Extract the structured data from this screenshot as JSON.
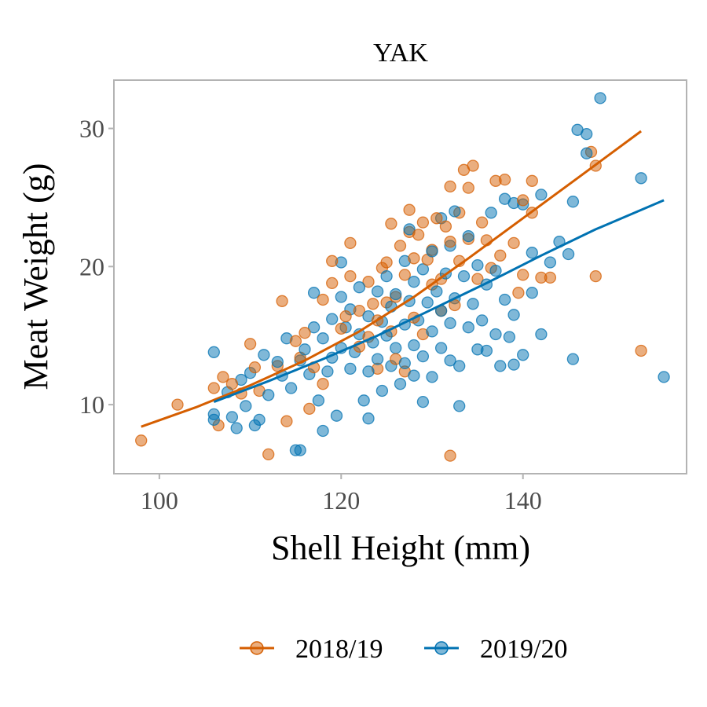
{
  "chart_data": {
    "type": "scatter",
    "title": "YAK",
    "xlabel": "Shell Height (mm)",
    "ylabel": "Meat Weight (g)",
    "xlim": [
      95,
      158
    ],
    "ylim": [
      5,
      33.5
    ],
    "xticks": [
      100,
      120,
      140
    ],
    "yticks": [
      10,
      20,
      30
    ],
    "xtick_labels": [
      "100",
      "120",
      "140"
    ],
    "ytick_labels": [
      "10",
      "20",
      "30"
    ],
    "legend_position": "bottom",
    "series": [
      {
        "name": "2018/19",
        "color": "#D55E00",
        "points": [
          [
            98,
            7.4
          ],
          [
            102,
            10.0
          ],
          [
            106,
            11.2
          ],
          [
            106.5,
            8.5
          ],
          [
            107,
            12.0
          ],
          [
            108,
            11.5
          ],
          [
            109,
            10.8
          ],
          [
            110,
            14.4
          ],
          [
            110.5,
            12.7
          ],
          [
            111,
            11.0
          ],
          [
            112,
            6.4
          ],
          [
            113,
            12.8
          ],
          [
            113.5,
            17.5
          ],
          [
            114,
            8.8
          ],
          [
            115,
            14.6
          ],
          [
            115.5,
            13.4
          ],
          [
            116,
            15.2
          ],
          [
            116.5,
            9.7
          ],
          [
            117,
            12.7
          ],
          [
            118,
            11.5
          ],
          [
            118,
            17.6
          ],
          [
            119,
            18.8
          ],
          [
            119,
            20.4
          ],
          [
            120,
            15.5
          ],
          [
            120.5,
            16.4
          ],
          [
            121,
            19.3
          ],
          [
            121,
            21.7
          ],
          [
            122,
            14.2
          ],
          [
            122,
            16.8
          ],
          [
            123,
            18.9
          ],
          [
            123,
            14.9
          ],
          [
            123.5,
            17.3
          ],
          [
            124,
            12.6
          ],
          [
            124,
            16.1
          ],
          [
            124.5,
            19.9
          ],
          [
            125,
            17.4
          ],
          [
            125,
            20.3
          ],
          [
            125.5,
            15.3
          ],
          [
            125.5,
            23.1
          ],
          [
            126,
            13.3
          ],
          [
            126,
            17.8
          ],
          [
            126.5,
            21.5
          ],
          [
            127,
            12.4
          ],
          [
            127,
            19.4
          ],
          [
            127.5,
            22.5
          ],
          [
            127.5,
            24.1
          ],
          [
            128,
            16.3
          ],
          [
            128,
            20.6
          ],
          [
            128.5,
            22.3
          ],
          [
            129,
            15.1
          ],
          [
            129,
            23.2
          ],
          [
            129.5,
            20.5
          ],
          [
            130,
            18.7
          ],
          [
            130,
            21.2
          ],
          [
            130.5,
            23.5
          ],
          [
            131,
            16.8
          ],
          [
            131,
            19.1
          ],
          [
            131.5,
            22.9
          ],
          [
            132,
            21.8
          ],
          [
            132,
            25.8
          ],
          [
            132,
            6.3
          ],
          [
            132.5,
            17.2
          ],
          [
            133,
            20.4
          ],
          [
            133,
            23.9
          ],
          [
            133.5,
            27.0
          ],
          [
            134,
            22.0
          ],
          [
            134,
            25.7
          ],
          [
            134.5,
            27.3
          ],
          [
            135,
            19.1
          ],
          [
            135.5,
            23.2
          ],
          [
            136,
            21.9
          ],
          [
            136.5,
            19.9
          ],
          [
            137,
            26.2
          ],
          [
            137.5,
            20.8
          ],
          [
            138,
            26.3
          ],
          [
            139,
            21.7
          ],
          [
            139.5,
            18.1
          ],
          [
            140,
            19.4
          ],
          [
            140,
            24.8
          ],
          [
            141,
            23.9
          ],
          [
            141,
            26.2
          ],
          [
            142,
            19.2
          ],
          [
            143,
            19.2
          ],
          [
            147.5,
            28.3
          ],
          [
            148,
            27.3
          ],
          [
            148,
            19.3
          ],
          [
            153,
            13.9
          ]
        ],
        "fit": [
          [
            98,
            8.4
          ],
          [
            104,
            9.8
          ],
          [
            110,
            11.4
          ],
          [
            116,
            13.2
          ],
          [
            122,
            15.3
          ],
          [
            128,
            17.8
          ],
          [
            134,
            20.6
          ],
          [
            140,
            23.5
          ],
          [
            146,
            26.4
          ],
          [
            153,
            29.8
          ]
        ]
      },
      {
        "name": "2019/20",
        "color": "#0072B2",
        "points": [
          [
            106,
            13.8
          ],
          [
            106,
            9.3
          ],
          [
            106,
            8.9
          ],
          [
            107.5,
            10.9
          ],
          [
            108,
            9.1
          ],
          [
            108.5,
            8.3
          ],
          [
            109,
            11.8
          ],
          [
            109.5,
            9.9
          ],
          [
            110,
            12.3
          ],
          [
            110.5,
            8.5
          ],
          [
            111,
            8.9
          ],
          [
            111.5,
            13.6
          ],
          [
            112,
            10.7
          ],
          [
            113,
            13.1
          ],
          [
            113.5,
            12.1
          ],
          [
            114,
            14.8
          ],
          [
            114.5,
            11.2
          ],
          [
            115,
            6.7
          ],
          [
            115.5,
            6.7
          ],
          [
            115.5,
            13.2
          ],
          [
            116,
            14.0
          ],
          [
            116.5,
            12.2
          ],
          [
            117,
            18.1
          ],
          [
            117,
            15.6
          ],
          [
            117.5,
            10.3
          ],
          [
            118,
            8.1
          ],
          [
            118,
            14.8
          ],
          [
            118.5,
            12.4
          ],
          [
            119,
            13.4
          ],
          [
            119,
            16.2
          ],
          [
            119.5,
            9.2
          ],
          [
            120,
            17.8
          ],
          [
            120,
            14.1
          ],
          [
            120,
            20.3
          ],
          [
            120.5,
            15.6
          ],
          [
            121,
            12.6
          ],
          [
            121,
            16.9
          ],
          [
            121.5,
            13.8
          ],
          [
            122,
            15.1
          ],
          [
            122,
            18.5
          ],
          [
            122.5,
            10.3
          ],
          [
            123,
            12.4
          ],
          [
            123,
            16.4
          ],
          [
            123,
            9.0
          ],
          [
            123.5,
            14.5
          ],
          [
            124,
            18.2
          ],
          [
            124,
            13.3
          ],
          [
            124.5,
            16.0
          ],
          [
            124.5,
            11.0
          ],
          [
            125,
            15.0
          ],
          [
            125,
            19.3
          ],
          [
            125.5,
            12.8
          ],
          [
            125.5,
            17.1
          ],
          [
            126,
            14.1
          ],
          [
            126,
            18.0
          ],
          [
            126.5,
            11.5
          ],
          [
            127,
            15.8
          ],
          [
            127,
            20.4
          ],
          [
            127,
            13.0
          ],
          [
            127.5,
            17.5
          ],
          [
            127.5,
            22.7
          ],
          [
            128,
            14.3
          ],
          [
            128,
            18.9
          ],
          [
            128,
            12.1
          ],
          [
            128.5,
            16.1
          ],
          [
            129,
            19.8
          ],
          [
            129,
            13.5
          ],
          [
            129,
            10.2
          ],
          [
            129.5,
            17.4
          ],
          [
            130,
            15.3
          ],
          [
            130,
            21.1
          ],
          [
            130,
            12.0
          ],
          [
            130.5,
            18.2
          ],
          [
            131,
            14.1
          ],
          [
            131,
            23.5
          ],
          [
            131,
            16.8
          ],
          [
            131.5,
            19.5
          ],
          [
            132,
            13.2
          ],
          [
            132,
            21.5
          ],
          [
            132,
            15.9
          ],
          [
            132.5,
            24.0
          ],
          [
            132.5,
            17.7
          ],
          [
            133,
            12.8
          ],
          [
            133,
            9.9
          ],
          [
            133.5,
            19.3
          ],
          [
            134,
            15.6
          ],
          [
            134,
            22.2
          ],
          [
            134.5,
            17.3
          ],
          [
            135,
            14.0
          ],
          [
            135,
            20.1
          ],
          [
            135.5,
            16.1
          ],
          [
            136,
            13.9
          ],
          [
            136,
            18.7
          ],
          [
            136.5,
            23.9
          ],
          [
            137,
            15.1
          ],
          [
            137,
            19.7
          ],
          [
            137.5,
            12.8
          ],
          [
            138,
            17.6
          ],
          [
            138,
            24.9
          ],
          [
            138.5,
            14.9
          ],
          [
            139,
            16.5
          ],
          [
            139,
            24.6
          ],
          [
            139,
            12.9
          ],
          [
            140,
            13.6
          ],
          [
            140,
            24.5
          ],
          [
            141,
            21.0
          ],
          [
            141,
            18.1
          ],
          [
            142,
            15.1
          ],
          [
            142,
            25.2
          ],
          [
            143,
            20.3
          ],
          [
            144,
            21.8
          ],
          [
            145,
            20.9
          ],
          [
            145.5,
            24.7
          ],
          [
            145.5,
            13.3
          ],
          [
            146,
            29.9
          ],
          [
            147,
            28.2
          ],
          [
            147,
            29.6
          ],
          [
            148.5,
            32.2
          ],
          [
            153,
            26.4
          ],
          [
            155.5,
            12.0
          ]
        ],
        "fit": [
          [
            106,
            10.2
          ],
          [
            112,
            11.7
          ],
          [
            118,
            13.3
          ],
          [
            124,
            15.0
          ],
          [
            130,
            16.9
          ],
          [
            136,
            18.8
          ],
          [
            142,
            20.8
          ],
          [
            148,
            22.7
          ],
          [
            155.5,
            24.8
          ]
        ]
      }
    ]
  }
}
